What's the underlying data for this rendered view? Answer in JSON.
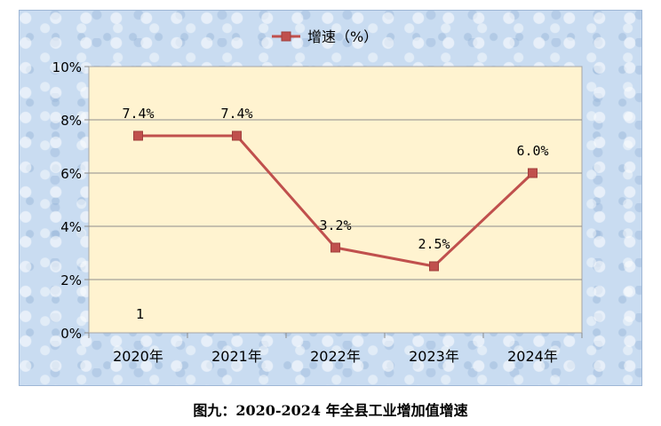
{
  "chart_data": {
    "type": "line",
    "categories": [
      "2020年",
      "2021年",
      "2022年",
      "2023年",
      "2024年"
    ],
    "series": [
      {
        "name": "增速（%）",
        "values": [
          7.4,
          7.4,
          3.2,
          2.5,
          6.0
        ],
        "color": "#c0504d"
      }
    ],
    "data_labels": [
      "7.4%",
      "7.4%",
      "3.2%",
      "2.5%",
      "6.0%"
    ],
    "ylim": [
      0,
      10
    ],
    "yticks": [
      "0%",
      "2%",
      "4%",
      "6%",
      "8%",
      "10%"
    ],
    "grid": true,
    "legend_position": "top-center",
    "plot_background": "#fff3d0",
    "stray_text": "1"
  },
  "caption": "图九：2020-2024 年全县工业增加值增速"
}
